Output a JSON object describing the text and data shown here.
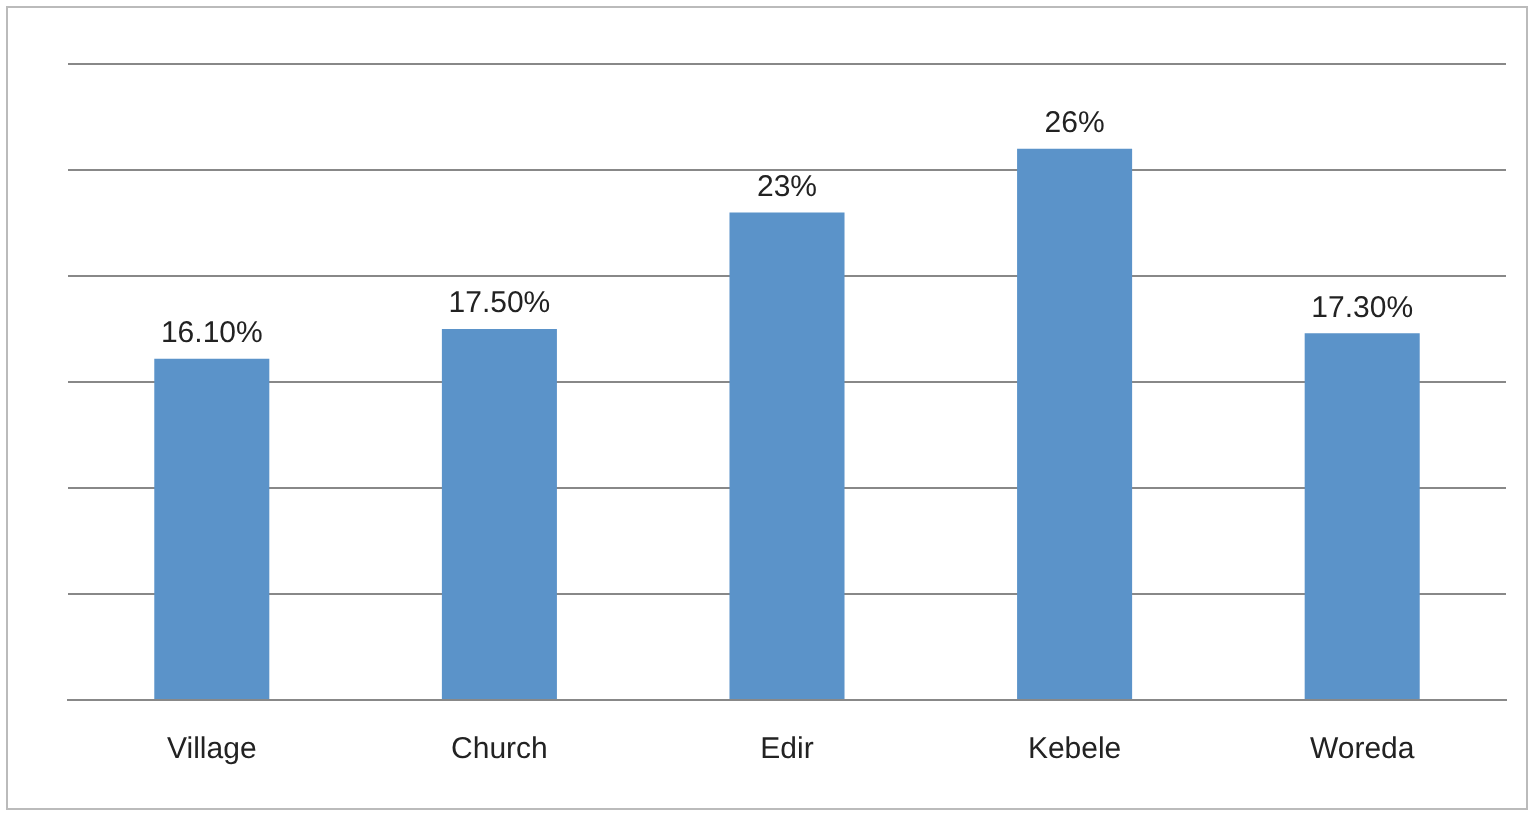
{
  "chart_data": {
    "type": "bar",
    "categories": [
      "Village",
      "Church",
      "Edir",
      "Kebele",
      "Woreda"
    ],
    "values": [
      16.1,
      17.5,
      23,
      26,
      17.3
    ],
    "value_labels": [
      "16.10%",
      "17.50%",
      "23%",
      "26%",
      "17.30%"
    ],
    "color": "#5b93c9",
    "ylim": [
      0,
      30
    ],
    "yticks": [
      {
        "value": 0,
        "label": null
      },
      {
        "value": 5,
        "label": null
      },
      {
        "value": 10,
        "label": null
      },
      {
        "value": 15,
        "label": null
      },
      {
        "value": 20,
        "label": null
      },
      {
        "value": 25,
        "label": null
      },
      {
        "value": 30,
        "label": null
      }
    ],
    "grid": "y",
    "tick_labels": "x"
  }
}
